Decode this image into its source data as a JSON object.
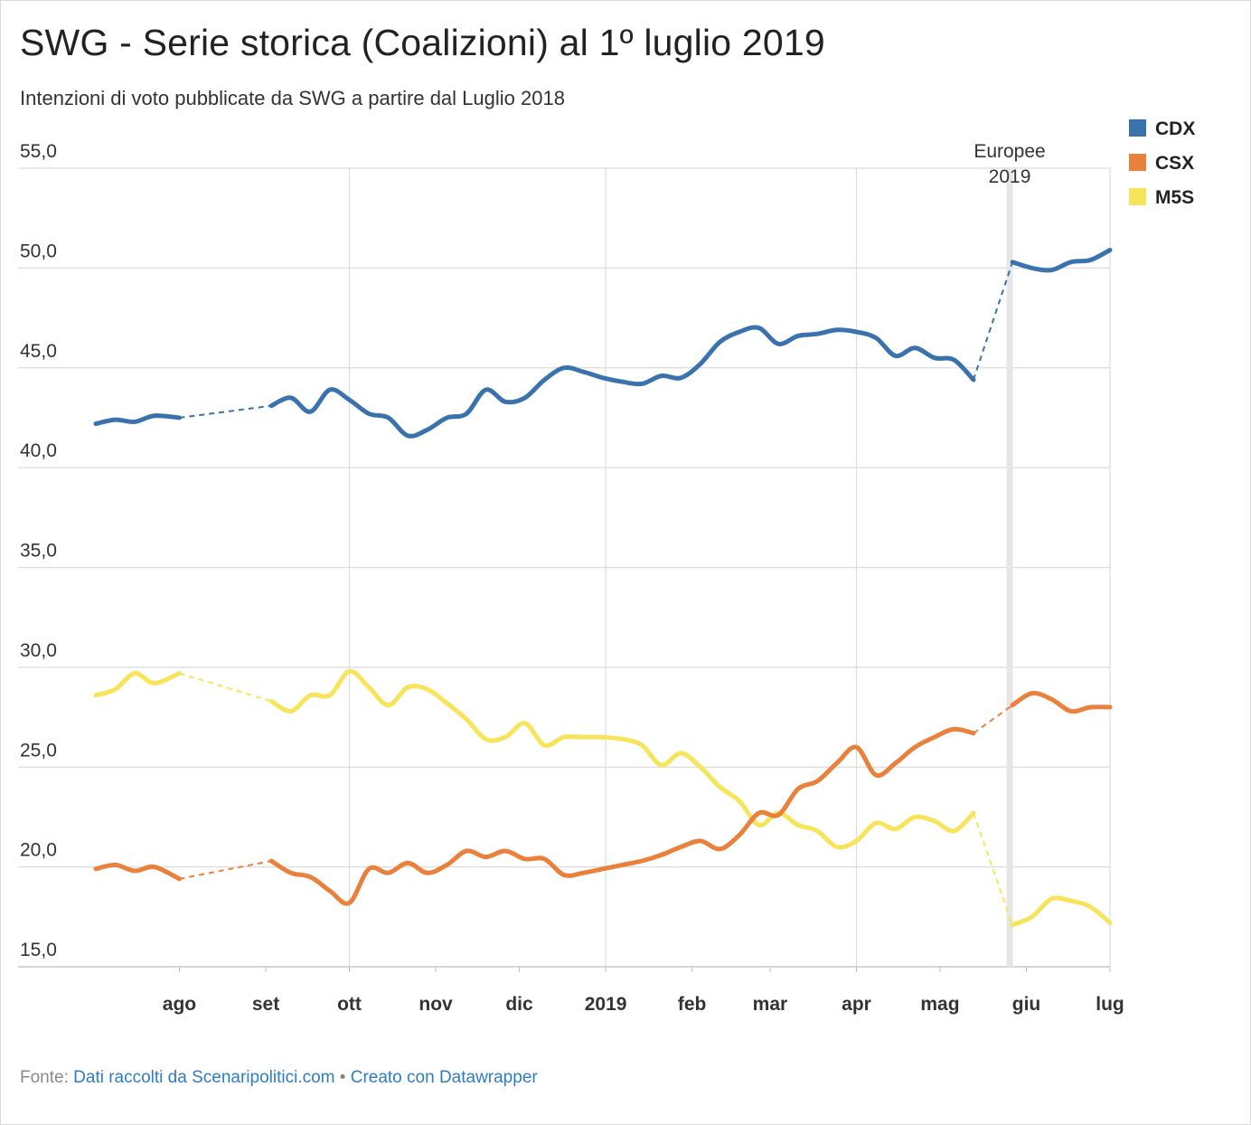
{
  "title": "SWG - Serie storica (Coalizioni) al 1º luglio 2019",
  "subtitle": "Intenzioni di voto pubblicate da SWG a partire dal Luglio 2018",
  "footer": {
    "source_prefix": "Fonte:",
    "source_link": "Dati raccolti da Scenaripolitici.com",
    "separator": "•",
    "credit_link": "Creato con Datawrapper"
  },
  "chart_data": {
    "type": "line",
    "title": "SWG - Serie storica (Coalizioni) al 1º luglio 2019",
    "subtitle": "Intenzioni di voto pubblicate da SWG a partire dal Luglio 2018",
    "xlabel": "",
    "ylabel": "",
    "x_range": [
      "2018-07-02",
      "2019-07-01"
    ],
    "ylim": [
      15,
      55
    ],
    "y_ticks": [
      55,
      50,
      45,
      40,
      35,
      30,
      25,
      20,
      15
    ],
    "y_tick_labels": [
      "55,0",
      "50,0",
      "45,0",
      "40,0",
      "35,0",
      "30,0",
      "25,0",
      "20,0",
      "15,0"
    ],
    "x_ticks": [
      {
        "date": "2018-08-01",
        "label": "ago"
      },
      {
        "date": "2018-09-01",
        "label": "set"
      },
      {
        "date": "2018-10-01",
        "label": "ott"
      },
      {
        "date": "2018-11-01",
        "label": "nov"
      },
      {
        "date": "2018-12-01",
        "label": "dic"
      },
      {
        "date": "2019-01-01",
        "label": "2019"
      },
      {
        "date": "2019-02-01",
        "label": "feb"
      },
      {
        "date": "2019-03-01",
        "label": "mar"
      },
      {
        "date": "2019-04-01",
        "label": "apr"
      },
      {
        "date": "2019-05-01",
        "label": "mag"
      },
      {
        "date": "2019-06-01",
        "label": "giu"
      },
      {
        "date": "2019-07-01",
        "label": "lug"
      }
    ],
    "grid": true,
    "legend": "top-right",
    "annotation": {
      "date": "2019-05-26",
      "label_lines": [
        "Europee",
        "2019"
      ],
      "color": "#e6e6e6"
    },
    "gaps": [
      [
        "2018-08-01",
        "2018-09-03"
      ],
      [
        "2019-05-13",
        "2019-05-27"
      ]
    ],
    "series": [
      {
        "name": "CDX",
        "color": "#3a72ad",
        "points": [
          [
            "2018-07-02",
            42.2
          ],
          [
            "2018-07-09",
            42.4
          ],
          [
            "2018-07-16",
            42.3
          ],
          [
            "2018-07-23",
            42.6
          ],
          [
            "2018-08-01",
            42.5
          ],
          [
            "2018-09-03",
            43.1
          ],
          [
            "2018-09-10",
            43.5
          ],
          [
            "2018-09-17",
            42.8
          ],
          [
            "2018-09-24",
            43.9
          ],
          [
            "2018-10-01",
            43.4
          ],
          [
            "2018-10-08",
            42.7
          ],
          [
            "2018-10-15",
            42.5
          ],
          [
            "2018-10-22",
            41.6
          ],
          [
            "2018-10-29",
            41.9
          ],
          [
            "2018-11-05",
            42.5
          ],
          [
            "2018-11-12",
            42.7
          ],
          [
            "2018-11-19",
            43.9
          ],
          [
            "2018-11-26",
            43.3
          ],
          [
            "2018-12-03",
            43.5
          ],
          [
            "2018-12-10",
            44.4
          ],
          [
            "2018-12-17",
            45.0
          ],
          [
            "2018-12-24",
            44.8
          ],
          [
            "2018-12-31",
            44.5
          ],
          [
            "2019-01-07",
            44.3
          ],
          [
            "2019-01-14",
            44.2
          ],
          [
            "2019-01-21",
            44.6
          ],
          [
            "2019-01-28",
            44.5
          ],
          [
            "2019-02-04",
            45.2
          ],
          [
            "2019-02-11",
            46.3
          ],
          [
            "2019-02-18",
            46.8
          ],
          [
            "2019-02-25",
            47.0
          ],
          [
            "2019-03-04",
            46.2
          ],
          [
            "2019-03-11",
            46.6
          ],
          [
            "2019-03-18",
            46.7
          ],
          [
            "2019-03-25",
            46.9
          ],
          [
            "2019-04-01",
            46.8
          ],
          [
            "2019-04-08",
            46.5
          ],
          [
            "2019-04-15",
            45.6
          ],
          [
            "2019-04-22",
            46.0
          ],
          [
            "2019-04-29",
            45.5
          ],
          [
            "2019-05-06",
            45.4
          ],
          [
            "2019-05-13",
            44.4
          ],
          [
            "2019-05-27",
            50.3
          ],
          [
            "2019-06-03",
            50.0
          ],
          [
            "2019-06-10",
            49.9
          ],
          [
            "2019-06-17",
            50.3
          ],
          [
            "2019-06-24",
            50.4
          ],
          [
            "2019-07-01",
            50.9
          ]
        ]
      },
      {
        "name": "CSX",
        "color": "#e9803c",
        "points": [
          [
            "2018-07-02",
            19.9
          ],
          [
            "2018-07-09",
            20.1
          ],
          [
            "2018-07-16",
            19.8
          ],
          [
            "2018-07-23",
            20.0
          ],
          [
            "2018-08-01",
            19.4
          ],
          [
            "2018-09-03",
            20.3
          ],
          [
            "2018-09-10",
            19.7
          ],
          [
            "2018-09-17",
            19.5
          ],
          [
            "2018-09-24",
            18.8
          ],
          [
            "2018-10-01",
            18.2
          ],
          [
            "2018-10-08",
            19.9
          ],
          [
            "2018-10-15",
            19.7
          ],
          [
            "2018-10-22",
            20.2
          ],
          [
            "2018-10-29",
            19.7
          ],
          [
            "2018-11-05",
            20.1
          ],
          [
            "2018-11-12",
            20.8
          ],
          [
            "2018-11-19",
            20.5
          ],
          [
            "2018-11-26",
            20.8
          ],
          [
            "2018-12-03",
            20.4
          ],
          [
            "2018-12-10",
            20.4
          ],
          [
            "2018-12-17",
            19.6
          ],
          [
            "2018-12-24",
            19.7
          ],
          [
            "2018-12-31",
            19.9
          ],
          [
            "2019-01-07",
            20.1
          ],
          [
            "2019-01-14",
            20.3
          ],
          [
            "2019-01-21",
            20.6
          ],
          [
            "2019-01-28",
            21.0
          ],
          [
            "2019-02-04",
            21.3
          ],
          [
            "2019-02-11",
            20.9
          ],
          [
            "2019-02-18",
            21.6
          ],
          [
            "2019-02-25",
            22.7
          ],
          [
            "2019-03-04",
            22.6
          ],
          [
            "2019-03-11",
            23.9
          ],
          [
            "2019-03-18",
            24.3
          ],
          [
            "2019-03-25",
            25.2
          ],
          [
            "2019-04-01",
            26.0
          ],
          [
            "2019-04-08",
            24.6
          ],
          [
            "2019-04-15",
            25.2
          ],
          [
            "2019-04-22",
            26.0
          ],
          [
            "2019-04-29",
            26.5
          ],
          [
            "2019-05-06",
            26.9
          ],
          [
            "2019-05-13",
            26.7
          ],
          [
            "2019-05-27",
            28.1
          ],
          [
            "2019-06-03",
            28.7
          ],
          [
            "2019-06-10",
            28.4
          ],
          [
            "2019-06-17",
            27.8
          ],
          [
            "2019-06-24",
            28.0
          ],
          [
            "2019-07-01",
            28.0
          ]
        ]
      },
      {
        "name": "M5S",
        "color": "#f7e45a",
        "points": [
          [
            "2018-07-02",
            28.6
          ],
          [
            "2018-07-09",
            28.9
          ],
          [
            "2018-07-16",
            29.7
          ],
          [
            "2018-07-23",
            29.2
          ],
          [
            "2018-08-01",
            29.7
          ],
          [
            "2018-09-03",
            28.3
          ],
          [
            "2018-09-10",
            27.8
          ],
          [
            "2018-09-17",
            28.6
          ],
          [
            "2018-09-24",
            28.6
          ],
          [
            "2018-10-01",
            29.8
          ],
          [
            "2018-10-08",
            29.0
          ],
          [
            "2018-10-15",
            28.1
          ],
          [
            "2018-10-22",
            29.0
          ],
          [
            "2018-10-29",
            28.9
          ],
          [
            "2018-11-05",
            28.2
          ],
          [
            "2018-11-12",
            27.4
          ],
          [
            "2018-11-19",
            26.4
          ],
          [
            "2018-11-26",
            26.5
          ],
          [
            "2018-12-03",
            27.2
          ],
          [
            "2018-12-10",
            26.1
          ],
          [
            "2018-12-17",
            26.5
          ],
          [
            "2018-12-24",
            26.5
          ],
          [
            "2018-12-31",
            26.5
          ],
          [
            "2019-01-07",
            26.4
          ],
          [
            "2019-01-14",
            26.1
          ],
          [
            "2019-01-21",
            25.1
          ],
          [
            "2019-01-28",
            25.7
          ],
          [
            "2019-02-04",
            25.0
          ],
          [
            "2019-02-11",
            24.0
          ],
          [
            "2019-02-18",
            23.3
          ],
          [
            "2019-02-25",
            22.1
          ],
          [
            "2019-03-04",
            22.7
          ],
          [
            "2019-03-11",
            22.1
          ],
          [
            "2019-03-18",
            21.8
          ],
          [
            "2019-03-25",
            21.0
          ],
          [
            "2019-04-01",
            21.3
          ],
          [
            "2019-04-08",
            22.2
          ],
          [
            "2019-04-15",
            21.9
          ],
          [
            "2019-04-22",
            22.5
          ],
          [
            "2019-04-29",
            22.3
          ],
          [
            "2019-05-06",
            21.8
          ],
          [
            "2019-05-13",
            22.7
          ],
          [
            "2019-05-27",
            17.1
          ],
          [
            "2019-06-03",
            17.5
          ],
          [
            "2019-06-10",
            18.4
          ],
          [
            "2019-06-17",
            18.3
          ],
          [
            "2019-06-24",
            18.0
          ],
          [
            "2019-07-01",
            17.2
          ]
        ]
      }
    ]
  }
}
